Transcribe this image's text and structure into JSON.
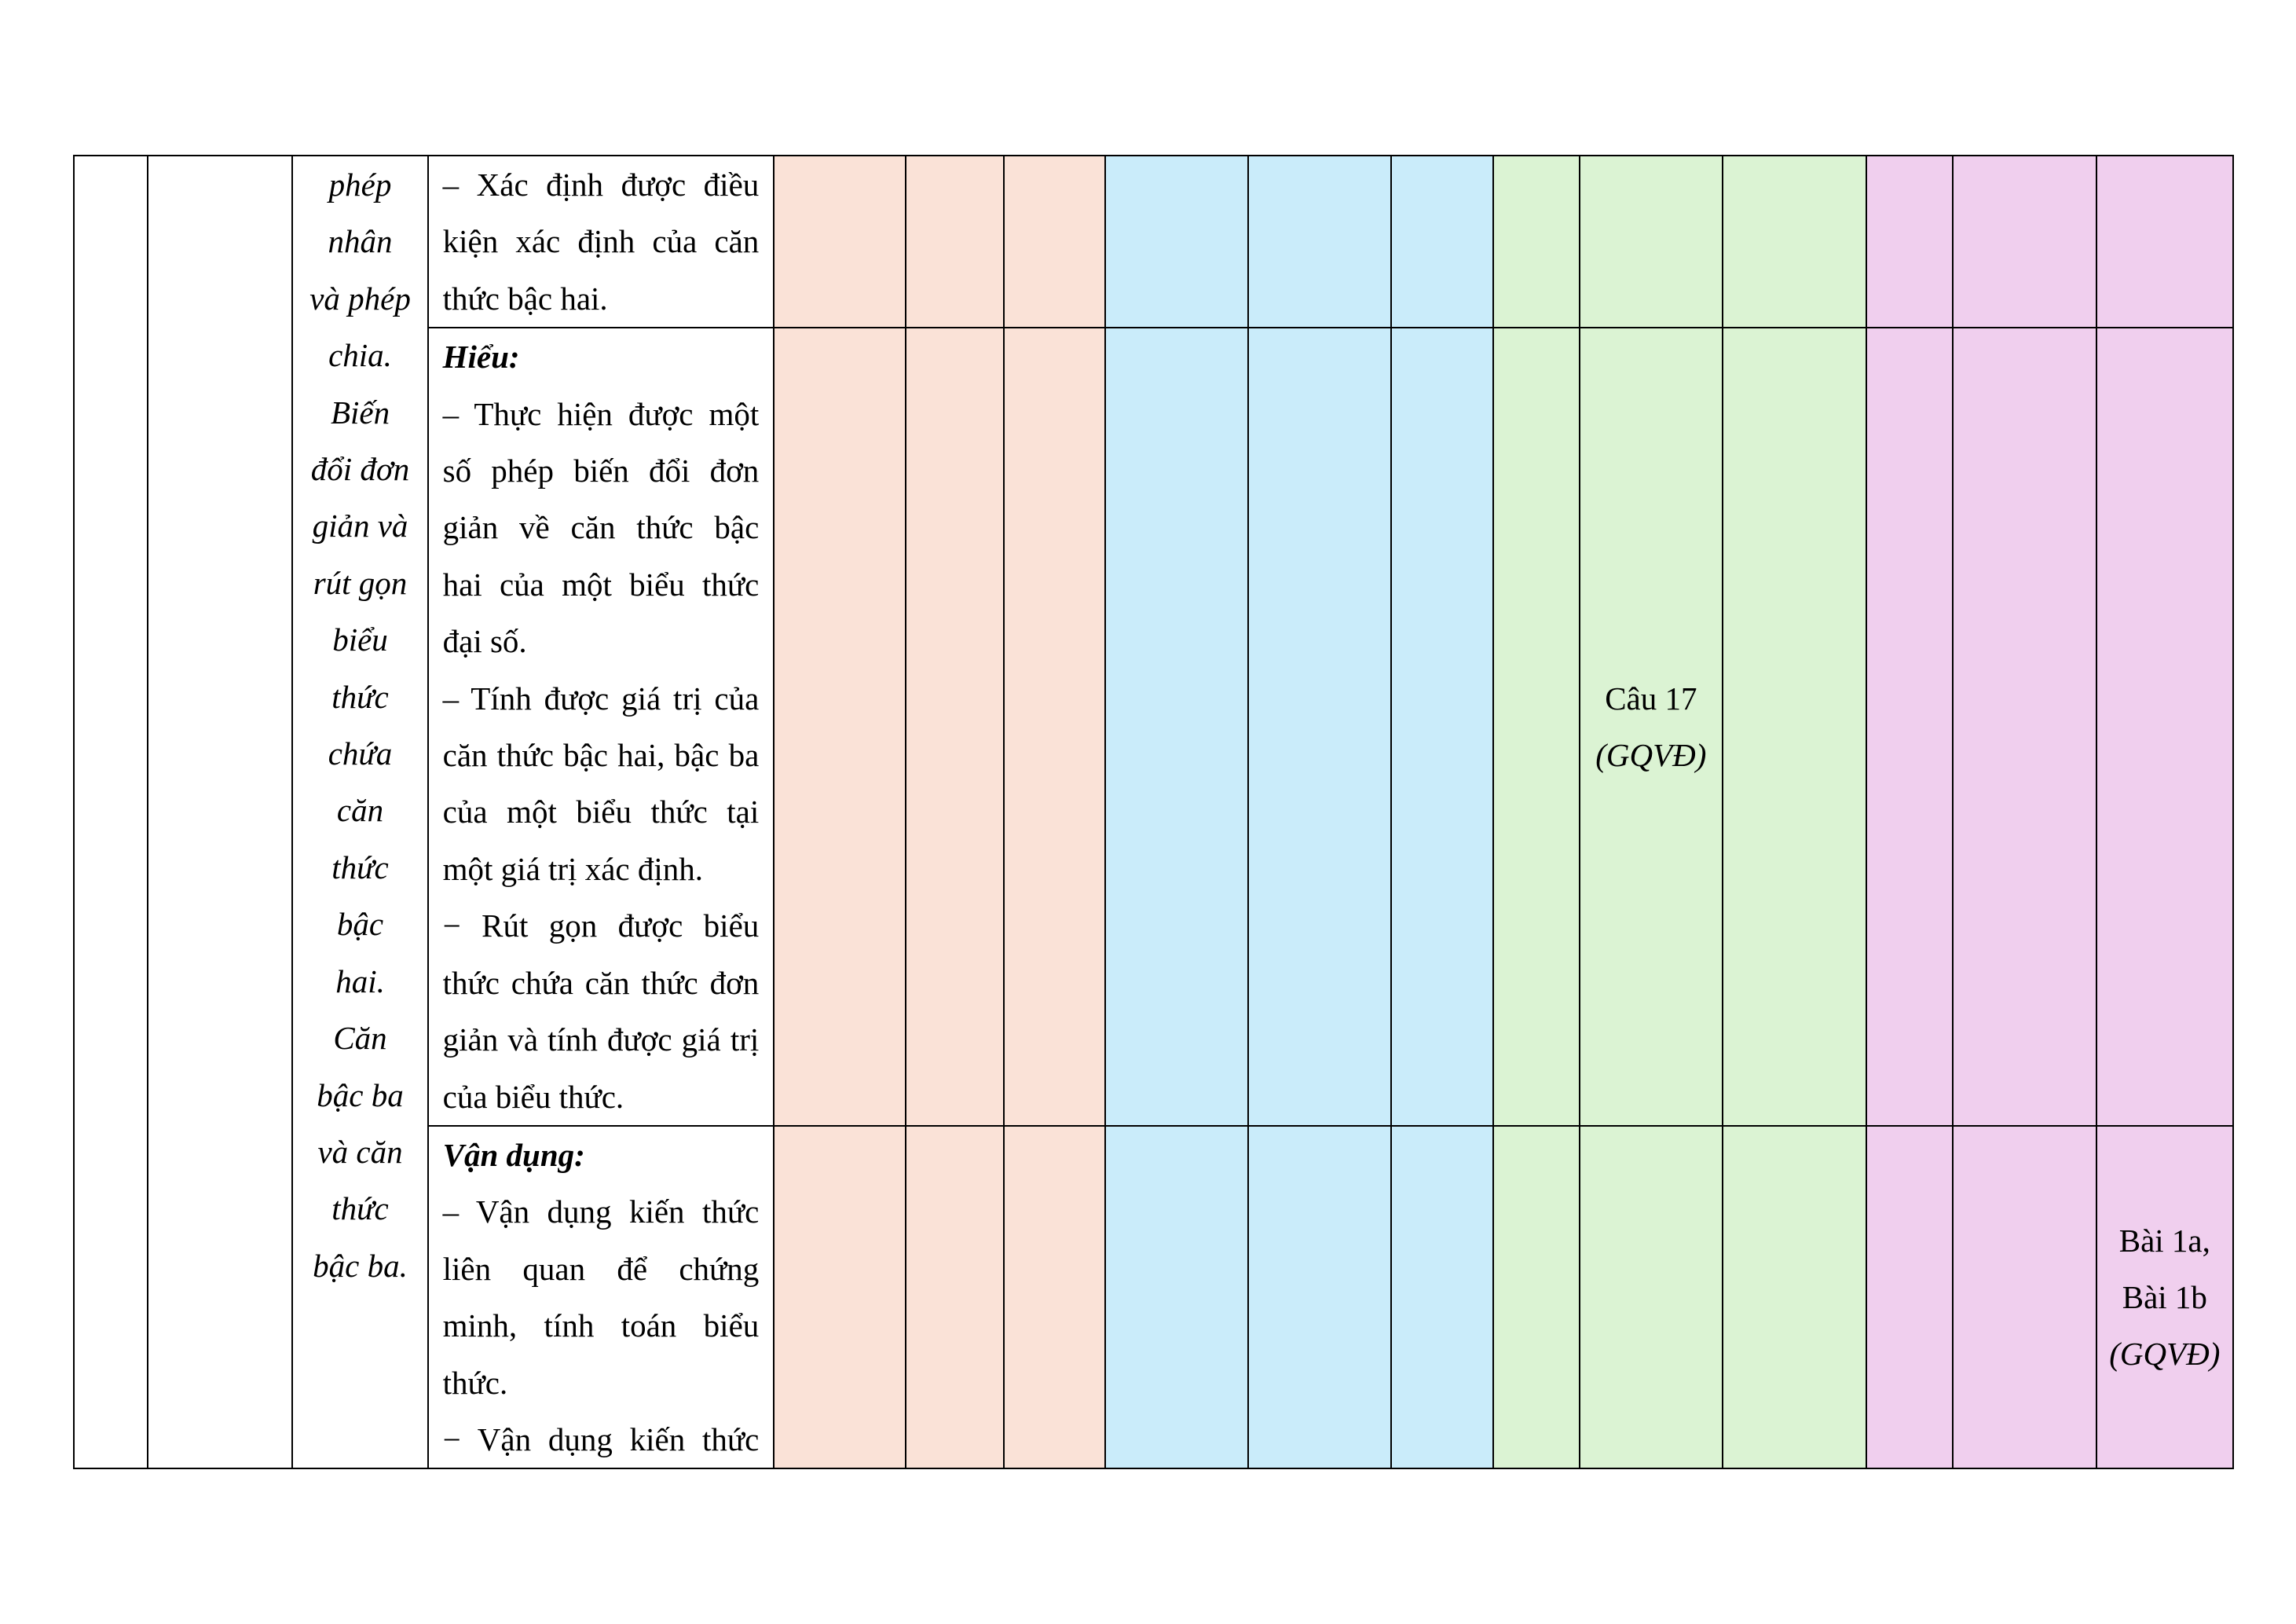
{
  "topic_lines": [
    "phép",
    "nhân",
    "và phép",
    "chia.",
    "Biến",
    "đổi đơn",
    "giản và",
    "rút gọn",
    "biểu",
    "thức",
    "chứa",
    "căn",
    "thức",
    "bậc",
    "hai.",
    "Căn",
    "bậc ba",
    "và căn",
    "thức",
    "bậc ba."
  ],
  "row1": {
    "lines": [
      "– Xác định được điều",
      "kiện xác định của căn",
      "thức bậc hai."
    ]
  },
  "row2": {
    "header": "Hiểu:",
    "lines": [
      "– Thực hiện được một",
      "số phép biến đổi đơn",
      "giản về căn thức bậc",
      "hai của một biểu thức",
      "đại số.",
      "– Tính được giá trị của",
      "căn thức bậc hai, bậc ba",
      "của một biểu thức tại",
      "một giá trị xác định.",
      "− Rút gọn được biểu",
      "thức chứa căn thức đơn",
      "giản và tính được giá trị",
      "của biểu thức."
    ],
    "question": "Câu 17",
    "competency": "(GQVĐ)"
  },
  "row3": {
    "header": "Vận dụng:",
    "lines": [
      "– Vận dụng kiến thức",
      "liên quan để chứng",
      "minh, tính toán biểu",
      "thức.",
      "− Vận dụng kiến thức"
    ],
    "question_a": "Bài 1a,",
    "question_b": "Bài 1b",
    "competency": "(GQVĐ)"
  },
  "colors": {
    "orange": "#fae2d7",
    "blue": "#caecfa",
    "green": "#dbf3d3",
    "pink": "#f0cfee"
  }
}
